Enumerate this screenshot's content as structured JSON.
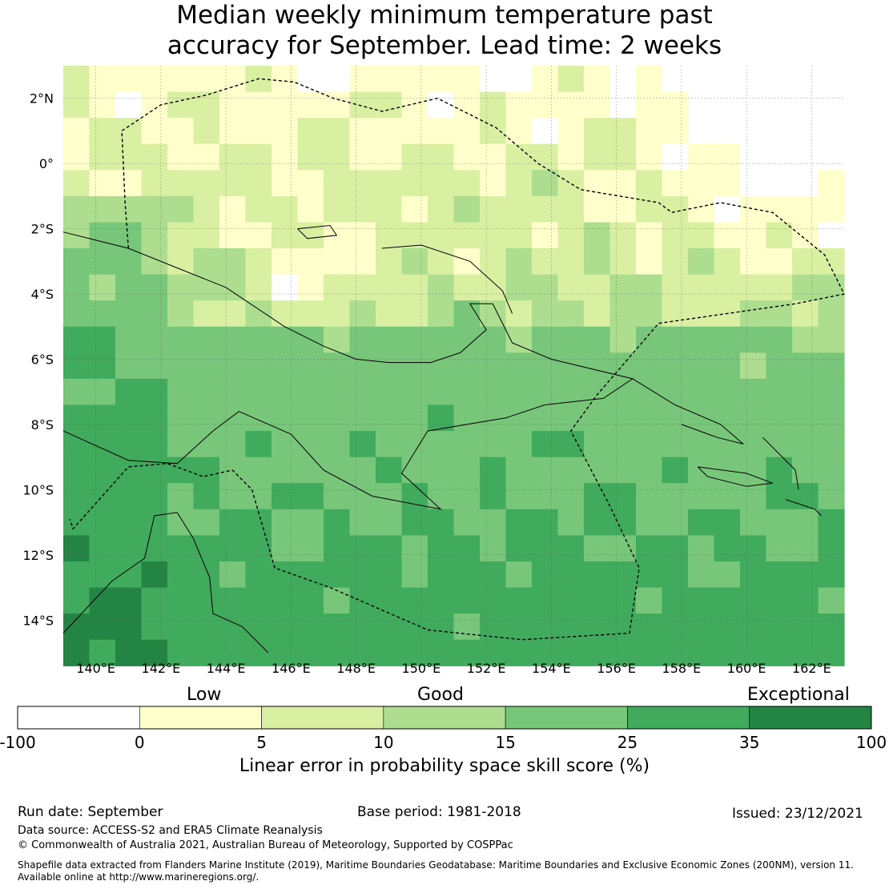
{
  "title": {
    "line1": "Median weekly minimum temperature past",
    "line2": "accuracy for September. Lead time: 2 weeks"
  },
  "map_data": {
    "lon_range": [
      139,
      163
    ],
    "lat_range": [
      -15,
      3
    ],
    "lon_ticks": [
      "140°E",
      "142°E",
      "144°E",
      "146°E",
      "148°E",
      "150°E",
      "152°E",
      "154°E",
      "156°E",
      "158°E",
      "160°E",
      "162°E"
    ],
    "lat_ticks": [
      "2°N",
      "0°",
      "2°S",
      "4°S",
      "6°S",
      "8°S",
      "10°S",
      "12°S",
      "14°S"
    ],
    "grid": true,
    "overlays": [
      "coastlines",
      "maritime EEZ boundary (dashed)"
    ]
  },
  "legend": {
    "categories": [
      "Low",
      "Good",
      "Exceptional"
    ],
    "bins": [
      {
        "from": -100,
        "to": 0,
        "color": "#ffffff"
      },
      {
        "from": 0,
        "to": 5,
        "color": "#ffffcc"
      },
      {
        "from": 5,
        "to": 10,
        "color": "#d9f0a3"
      },
      {
        "from": 10,
        "to": 15,
        "color": "#addd8e"
      },
      {
        "from": 15,
        "to": 25,
        "color": "#78c679"
      },
      {
        "from": 25,
        "to": 35,
        "color": "#41ab5d"
      },
      {
        "from": 35,
        "to": 100,
        "color": "#238443"
      }
    ],
    "tick_labels": [
      "-100",
      "0",
      "5",
      "10",
      "15",
      "25",
      "35",
      "100"
    ],
    "axis_label": "Linear error in probability space skill score (%)"
  },
  "footer": {
    "run_date": "Run date: September",
    "base_period": "Base period: 1981-2018",
    "issued": "Issued: 23/12/2021",
    "data_source": "Data source: ACCESS-S2 and ERA5 Climate Reanalysis",
    "copyright": "© Commonwealth of Australia 2021, Australian Bureau of Meteorology, Supported by COSPPac",
    "shapefile_line1": "Shapefile data extracted from Flanders Marine Institute (2019), Maritime Boundaries Geodatabase: Maritime Boundaries and Exclusive Economic Zones (200NM), version 11.",
    "shapefile_line2": "Available online at http://www.marineregions.org/."
  }
}
